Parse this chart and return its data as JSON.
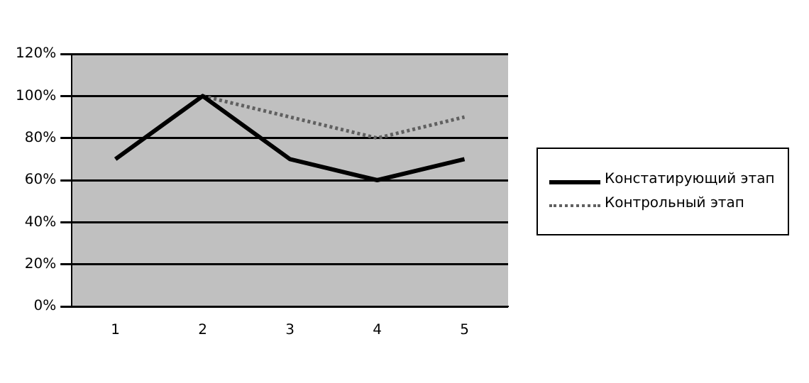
{
  "chart_data": {
    "type": "line",
    "categories": [
      "1",
      "2",
      "3",
      "4",
      "5"
    ],
    "series": [
      {
        "name": "Констатирующий этап",
        "color": "#000000",
        "values": [
          70,
          100,
          70,
          60,
          70
        ],
        "line_style": "solid"
      },
      {
        "name": "Контрольный этап",
        "color": "#606060",
        "values": [
          null,
          100,
          90,
          80,
          90
        ],
        "line_style": "dotted"
      }
    ],
    "ylim": [
      0,
      120
    ],
    "yticks": [
      {
        "value": 0,
        "label": "0%"
      },
      {
        "value": 20,
        "label": "20%"
      },
      {
        "value": 40,
        "label": "40%"
      },
      {
        "value": 60,
        "label": "60%"
      },
      {
        "value": 80,
        "label": "80%"
      },
      {
        "value": 100,
        "label": "100%"
      },
      {
        "value": 120,
        "label": "120%"
      }
    ],
    "grid": "y",
    "legend": "right",
    "marker": "none"
  }
}
